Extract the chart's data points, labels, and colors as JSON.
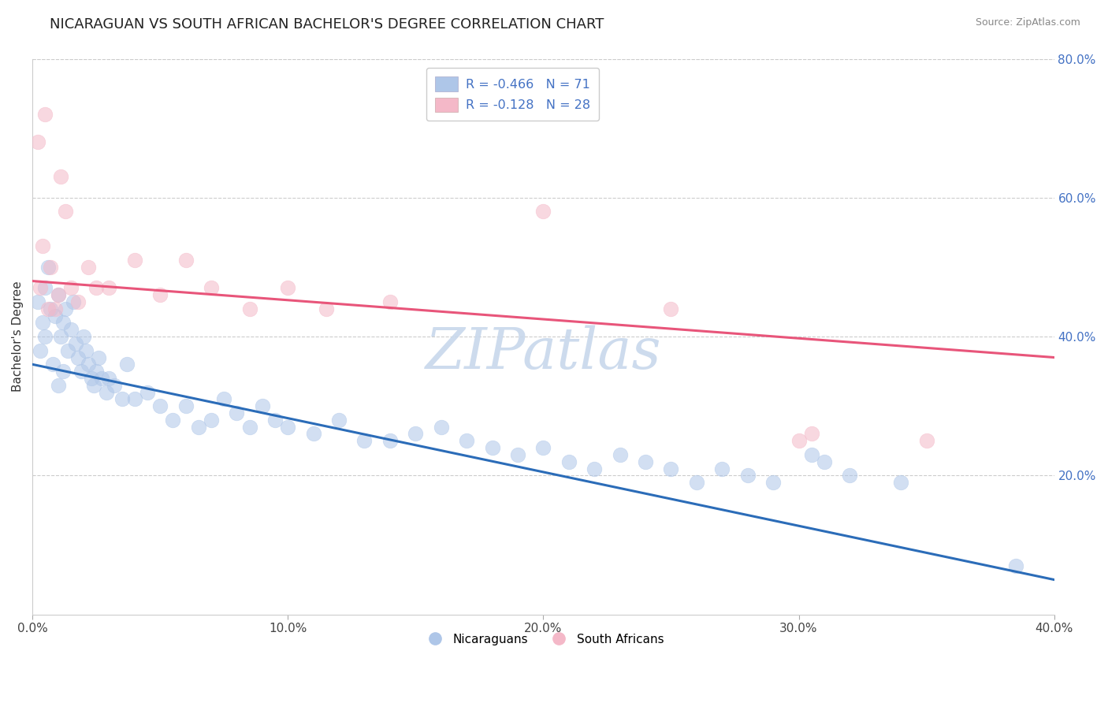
{
  "title": "NICARAGUAN VS SOUTH AFRICAN BACHELOR'S DEGREE CORRELATION CHART",
  "source_text": "Source: ZipAtlas.com",
  "ylabel": "Bachelor's Degree",
  "watermark": "ZIPatlas",
  "xlim": [
    0.0,
    40.0
  ],
  "ylim": [
    0.0,
    80.0
  ],
  "xticks": [
    0.0,
    10.0,
    20.0,
    30.0,
    40.0
  ],
  "yticks_right": [
    20.0,
    40.0,
    60.0,
    80.0
  ],
  "blue_color": "#aec6e8",
  "pink_color": "#f4b8c8",
  "blue_line_color": "#2b6cb8",
  "pink_line_color": "#e8557a",
  "legend_blue_patch": "#aec6e8",
  "legend_pink_patch": "#f4b8c8",
  "nicaraguan_R": -0.466,
  "nicaraguan_N": 71,
  "south_african_R": -0.128,
  "south_african_N": 28,
  "blue_scatter_x": [
    0.2,
    0.3,
    0.4,
    0.5,
    0.5,
    0.6,
    0.7,
    0.8,
    0.9,
    1.0,
    1.0,
    1.1,
    1.2,
    1.2,
    1.3,
    1.4,
    1.5,
    1.6,
    1.7,
    1.8,
    1.9,
    2.0,
    2.1,
    2.2,
    2.3,
    2.4,
    2.5,
    2.6,
    2.7,
    2.9,
    3.0,
    3.2,
    3.5,
    3.7,
    4.0,
    4.5,
    5.0,
    5.5,
    6.0,
    6.5,
    7.0,
    7.5,
    8.0,
    8.5,
    9.0,
    9.5,
    10.0,
    11.0,
    12.0,
    13.0,
    14.0,
    15.0,
    16.0,
    17.0,
    18.0,
    19.0,
    20.0,
    21.0,
    22.0,
    23.0,
    24.0,
    25.0,
    26.0,
    27.0,
    28.0,
    29.0,
    30.5,
    31.0,
    32.0,
    34.0,
    38.5
  ],
  "blue_scatter_y": [
    45.0,
    38.0,
    42.0,
    47.0,
    40.0,
    50.0,
    44.0,
    36.0,
    43.0,
    33.0,
    46.0,
    40.0,
    42.0,
    35.0,
    44.0,
    38.0,
    41.0,
    45.0,
    39.0,
    37.0,
    35.0,
    40.0,
    38.0,
    36.0,
    34.0,
    33.0,
    35.0,
    37.0,
    34.0,
    32.0,
    34.0,
    33.0,
    31.0,
    36.0,
    31.0,
    32.0,
    30.0,
    28.0,
    30.0,
    27.0,
    28.0,
    31.0,
    29.0,
    27.0,
    30.0,
    28.0,
    27.0,
    26.0,
    28.0,
    25.0,
    25.0,
    26.0,
    27.0,
    25.0,
    24.0,
    23.0,
    24.0,
    22.0,
    21.0,
    23.0,
    22.0,
    21.0,
    19.0,
    21.0,
    20.0,
    19.0,
    23.0,
    22.0,
    20.0,
    19.0,
    7.0
  ],
  "pink_scatter_x": [
    0.3,
    0.5,
    0.7,
    0.9,
    1.1,
    1.3,
    1.5,
    1.8,
    2.2,
    2.5,
    3.0,
    4.0,
    5.0,
    6.0,
    7.0,
    8.5,
    10.0,
    11.5,
    14.0,
    20.0,
    25.0,
    30.0,
    30.5,
    35.0,
    0.2,
    0.4,
    0.6,
    1.0
  ],
  "pink_scatter_y": [
    47.0,
    72.0,
    50.0,
    44.0,
    63.0,
    58.0,
    47.0,
    45.0,
    50.0,
    47.0,
    47.0,
    51.0,
    46.0,
    51.0,
    47.0,
    44.0,
    47.0,
    44.0,
    45.0,
    58.0,
    44.0,
    25.0,
    26.0,
    25.0,
    68.0,
    53.0,
    44.0,
    46.0
  ],
  "blue_line_x": [
    0.0,
    40.0
  ],
  "blue_line_y": [
    36.0,
    5.0
  ],
  "pink_line_x": [
    0.0,
    40.0
  ],
  "pink_line_y": [
    48.0,
    37.0
  ],
  "grid_color": "#cccccc",
  "bg_color": "#ffffff",
  "title_fontsize": 13,
  "axis_label_fontsize": 11,
  "tick_fontsize": 11,
  "watermark_fontsize": 52,
  "watermark_color": "#c8d8ec",
  "scatter_size": 180,
  "scatter_alpha": 0.55
}
